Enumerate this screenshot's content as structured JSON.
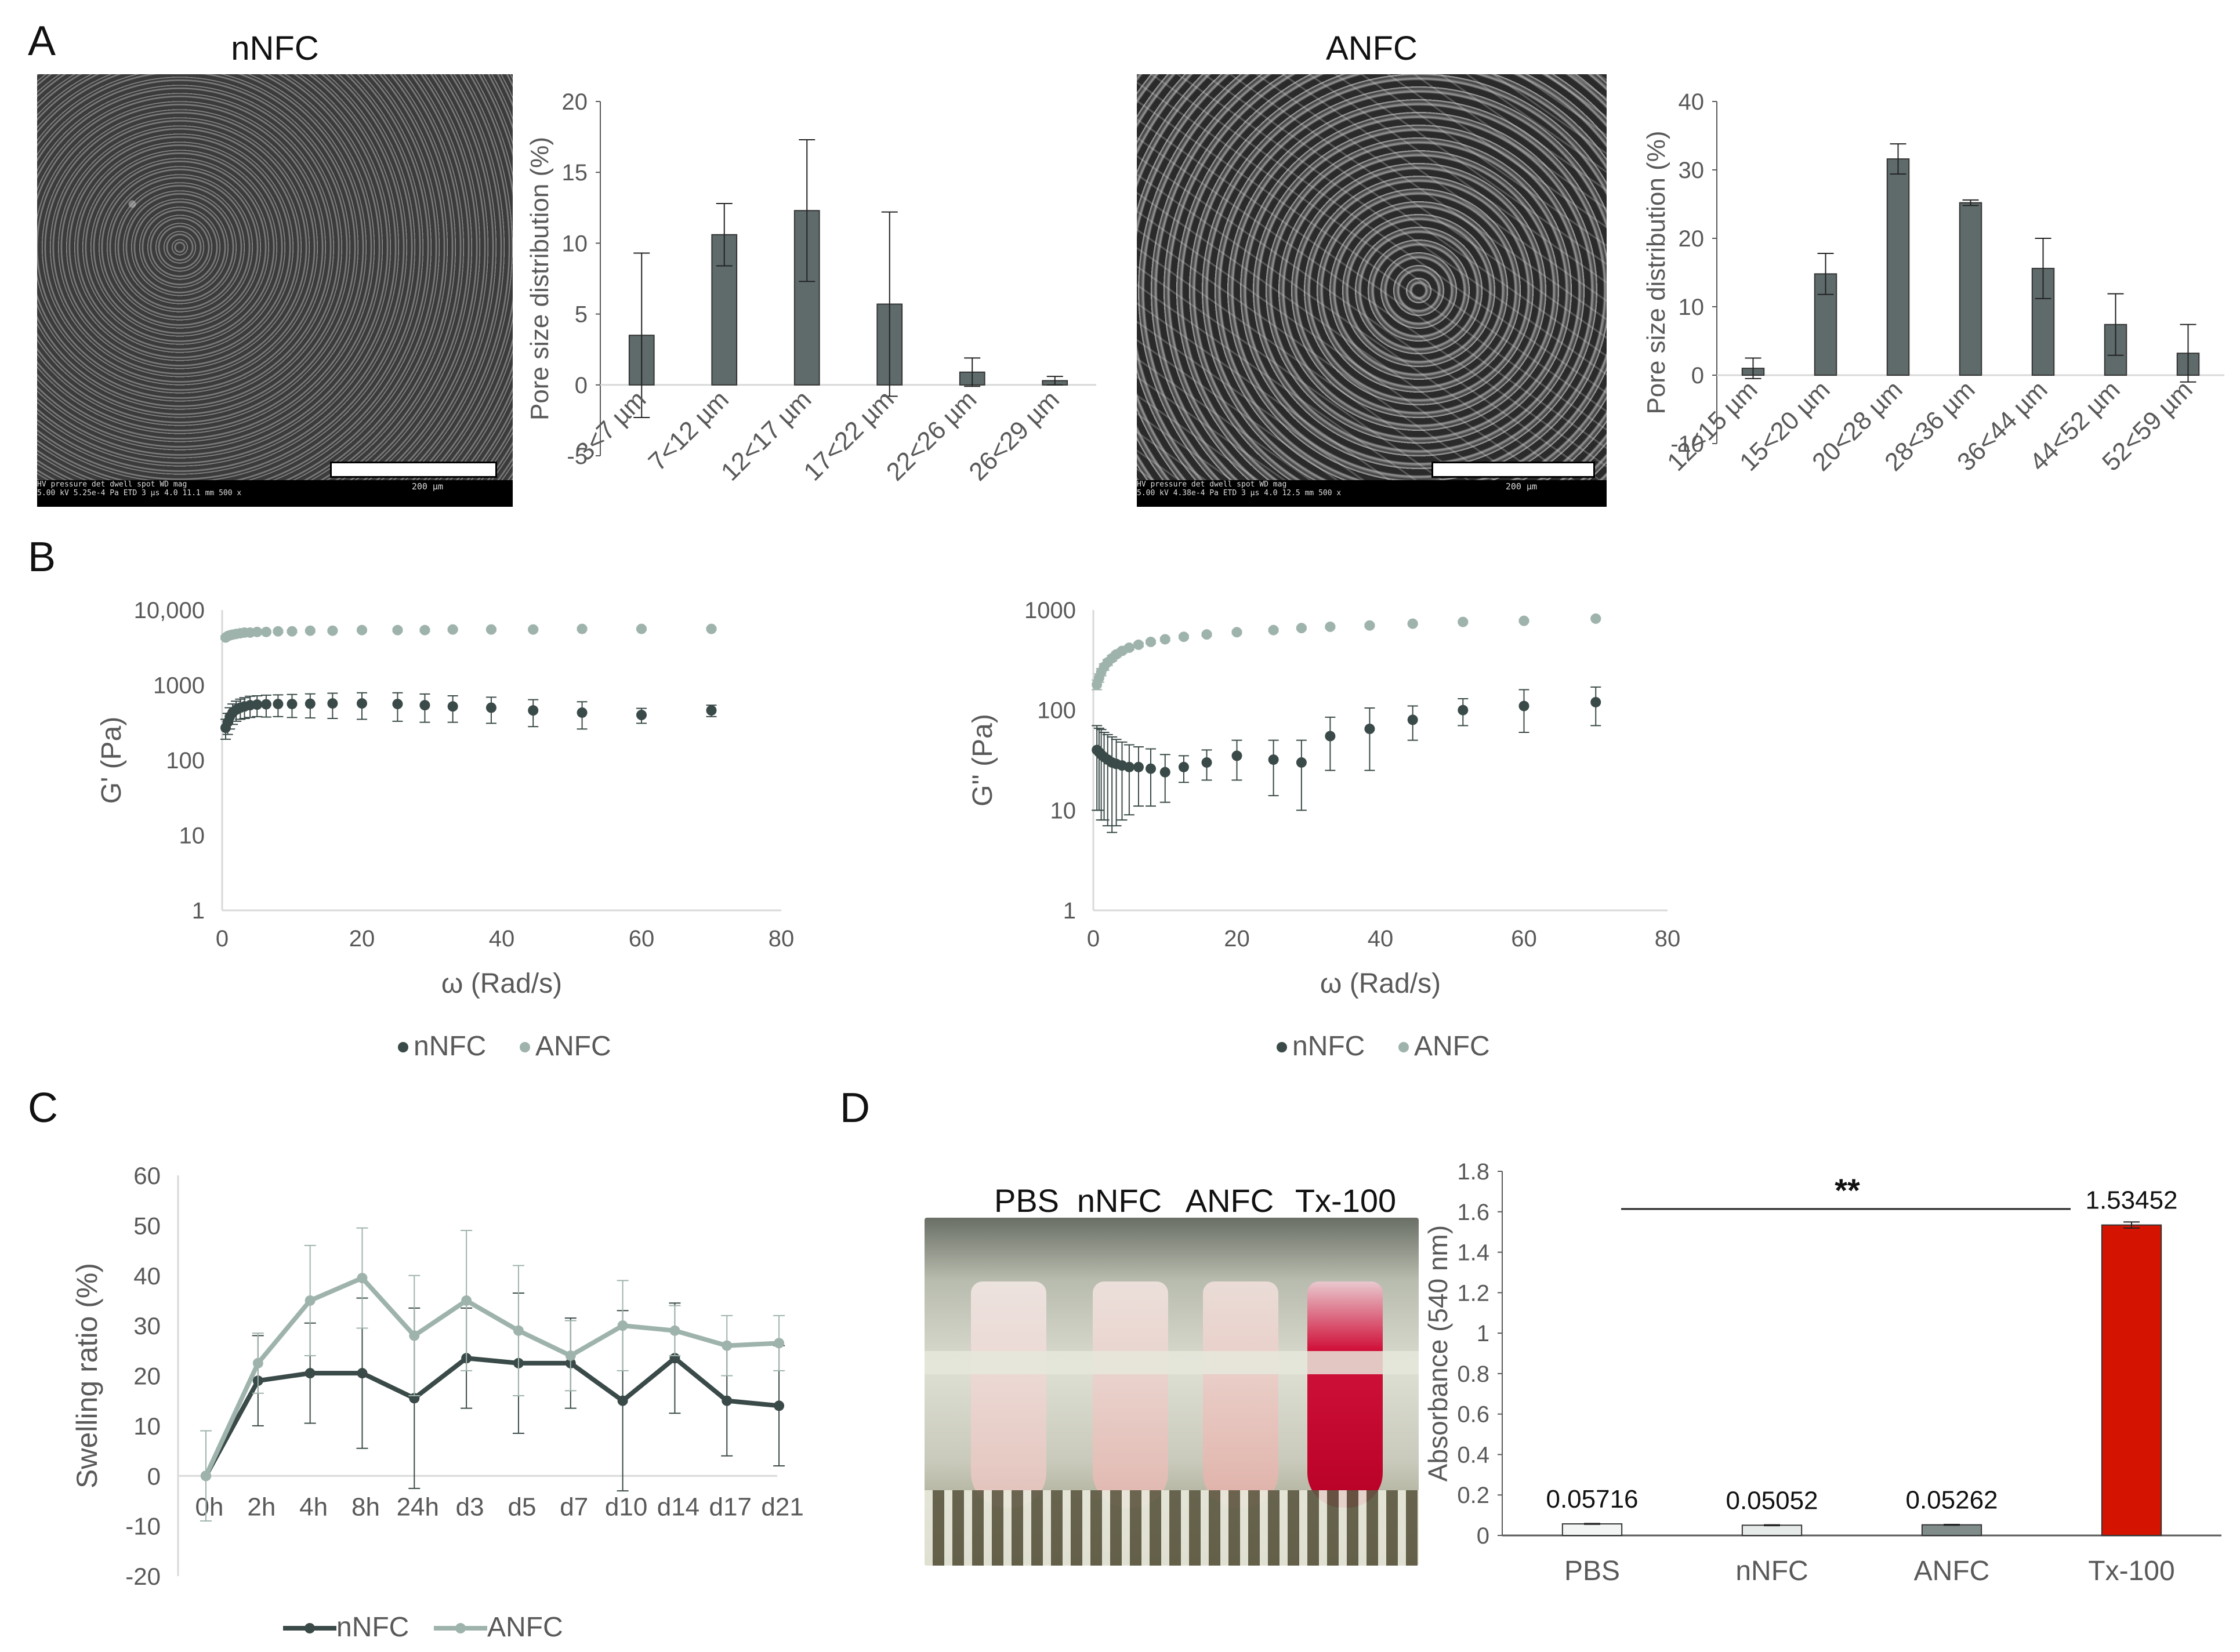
{
  "panels": {
    "A": {
      "letter": "A",
      "left": {
        "sem_title": "nNFC",
        "sem_meta_1": "HV     pressure   det  dwell spot    WD      mag",
        "sem_meta_2": "5.00 kV 5.25e-4 Pa ETD 3 µs  4.0  11.1 mm  500 x",
        "scale_label": "200 µm"
      },
      "right": {
        "sem_title": "ANFC",
        "sem_meta_1": "HV     pressure   det  dwell spot    WD      mag",
        "sem_meta_2": "5.00 kV 4.38e-4 Pa ETD 3 µs  4.0  12.5 mm  500 x",
        "scale_label": "200 µm"
      }
    },
    "B": {
      "letter": "B"
    },
    "C": {
      "letter": "C"
    },
    "D": {
      "letter": "D",
      "tube_labels": [
        "PBS",
        "nNFC",
        "ANFC",
        "Tx-100"
      ],
      "significance": "**"
    }
  },
  "colors": {
    "bar": "#5f6b6b",
    "dark": "#3a4a48",
    "light": "#9fb3ad",
    "red": "#d41400",
    "axis": "#595959",
    "grid": "#d9d9d9"
  },
  "chart_data": [
    {
      "id": "pore-nnfc",
      "type": "bar",
      "ylabel": "Pore size distribution (%)",
      "categories": [
        "3<7 µm",
        "7<12 µm",
        "12<17 µm",
        "17<22 µm",
        "22<26 µm",
        "26<29 µm"
      ],
      "values": [
        3.5,
        10.6,
        12.3,
        5.7,
        0.9,
        0.3
      ],
      "errors": [
        5.8,
        2.2,
        5.0,
        6.5,
        1.0,
        0.3
      ],
      "ylim": [
        -5,
        20
      ],
      "yticks": [
        -5,
        0,
        5,
        10,
        15,
        20
      ]
    },
    {
      "id": "pore-anfc",
      "type": "bar",
      "ylabel": "Pore size distribution (%)",
      "categories": [
        "12<15 µm",
        "15<20 µm",
        "20<28 µm",
        "28<36 µm",
        "36<44 µm",
        "44<52 µm",
        "52<59 µm"
      ],
      "values": [
        1.0,
        14.8,
        31.6,
        25.2,
        15.6,
        7.4,
        3.2
      ],
      "errors": [
        1.5,
        3.0,
        2.2,
        0.4,
        4.4,
        4.5,
        4.2
      ],
      "ylim": [
        -10,
        40
      ],
      "yticks": [
        -10,
        0,
        10,
        20,
        30,
        40
      ]
    },
    {
      "id": "storage-modulus",
      "type": "scatter",
      "ylabel": "G' (Pa)",
      "xlabel": "ω (Rad/s)",
      "xlim": [
        0,
        80
      ],
      "xticks": [
        0,
        20,
        40,
        60,
        80
      ],
      "ylog": true,
      "ylim": [
        1,
        10000
      ],
      "yticks": [
        1,
        10,
        100,
        1000,
        10000
      ],
      "ytick_labels": [
        "1",
        "10",
        "100",
        "1000",
        "10,000"
      ],
      "series": [
        {
          "name": "nNFC",
          "x": [
            0.5,
            0.8,
            1.1,
            1.5,
            2.0,
            2.6,
            3.2,
            4.0,
            5.0,
            6.3,
            8.0,
            10.0,
            12.6,
            15.8,
            20.0,
            25.1,
            29.0,
            33.0,
            38.5,
            44.5,
            51.5,
            60.0,
            70.0
          ],
          "y": [
            270,
            320,
            380,
            430,
            470,
            500,
            520,
            540,
            550,
            555,
            560,
            560,
            565,
            570,
            570,
            560,
            540,
            520,
            500,
            460,
            430,
            400,
            460
          ],
          "err": [
            80,
            100,
            120,
            130,
            140,
            150,
            160,
            170,
            170,
            180,
            180,
            190,
            200,
            210,
            220,
            230,
            220,
            200,
            190,
            180,
            170,
            90,
            80
          ]
        },
        {
          "name": "ANFC",
          "x": [
            0.5,
            0.8,
            1.1,
            1.5,
            2.0,
            2.6,
            3.2,
            4.0,
            5.0,
            6.3,
            8.0,
            10.0,
            12.6,
            15.8,
            20.0,
            25.1,
            29.0,
            33.0,
            38.5,
            44.5,
            51.5,
            60.0,
            70.0
          ],
          "y": [
            4300,
            4500,
            4600,
            4700,
            4800,
            4900,
            5000,
            5000,
            5100,
            5100,
            5200,
            5200,
            5300,
            5300,
            5400,
            5400,
            5400,
            5500,
            5500,
            5500,
            5600,
            5600,
            5600
          ],
          "err": [
            200,
            200,
            200,
            200,
            200,
            200,
            200,
            200,
            200,
            200,
            200,
            200,
            200,
            200,
            200,
            200,
            200,
            200,
            200,
            200,
            200,
            200,
            200
          ]
        }
      ],
      "legend": "bottom"
    },
    {
      "id": "loss-modulus",
      "type": "scatter",
      "ylabel": "G'' (Pa)",
      "xlabel": "ω (Rad/s)",
      "xlim": [
        0,
        80
      ],
      "xticks": [
        0,
        20,
        40,
        60,
        80
      ],
      "ylog": true,
      "ylim": [
        1,
        1000
      ],
      "yticks": [
        1,
        10,
        100,
        1000
      ],
      "ytick_labels": [
        "1",
        "10",
        "100",
        "1000"
      ],
      "series": [
        {
          "name": "nNFC",
          "x": [
            0.5,
            0.8,
            1.1,
            1.5,
            2.0,
            2.6,
            3.2,
            4.0,
            5.0,
            6.3,
            8.0,
            10.0,
            12.6,
            15.8,
            20.0,
            25.1,
            29.0,
            33.0,
            38.5,
            44.5,
            51.5,
            60.0,
            70.0
          ],
          "y": [
            40,
            38,
            36,
            34,
            32,
            30,
            29,
            28,
            27,
            27,
            26,
            24,
            27,
            30,
            35,
            32,
            30,
            55,
            65,
            80,
            100,
            110,
            120
          ],
          "err": [
            30,
            28,
            28,
            26,
            25,
            24,
            22,
            20,
            18,
            16,
            15,
            12,
            8,
            10,
            15,
            18,
            20,
            30,
            40,
            30,
            30,
            50,
            50
          ]
        },
        {
          "name": "ANFC",
          "x": [
            0.5,
            0.8,
            1.1,
            1.5,
            2.0,
            2.6,
            3.2,
            4.0,
            5.0,
            6.3,
            8.0,
            10.0,
            12.6,
            15.8,
            20.0,
            25.1,
            29.0,
            33.0,
            38.5,
            44.5,
            51.5,
            60.0,
            70.0
          ],
          "y": [
            180,
            210,
            240,
            270,
            300,
            330,
            360,
            390,
            420,
            450,
            480,
            510,
            540,
            570,
            600,
            630,
            660,
            680,
            700,
            730,
            760,
            780,
            820
          ],
          "err": [
            20,
            20,
            20,
            20,
            20,
            20,
            20,
            20,
            20,
            20,
            20,
            20,
            20,
            20,
            20,
            20,
            20,
            20,
            20,
            20,
            20,
            20,
            20
          ]
        }
      ],
      "legend": "bottom"
    },
    {
      "id": "swelling",
      "type": "line",
      "ylabel": "Swelling ratio (%)",
      "categories": [
        "0h",
        "2h",
        "4h",
        "8h",
        "24h",
        "d3",
        "d5",
        "d7",
        "d10",
        "d14",
        "d17",
        "d21"
      ],
      "ylim": [
        -20,
        60
      ],
      "yticks": [
        -20,
        -10,
        0,
        10,
        20,
        30,
        40,
        50,
        60
      ],
      "series": [
        {
          "name": "nNFC",
          "values": [
            0,
            19,
            20.5,
            20.5,
            15.5,
            23.5,
            22.5,
            22.5,
            15,
            23.5,
            15,
            14
          ],
          "err": [
            9,
            9,
            10,
            15,
            18,
            10,
            14,
            9,
            18,
            11,
            11,
            12
          ]
        },
        {
          "name": "ANFC",
          "values": [
            0,
            22.5,
            35,
            39.5,
            28,
            35,
            29,
            24,
            30,
            29,
            26,
            26.5
          ],
          "err": [
            9,
            6,
            11,
            10,
            12,
            14,
            13,
            7,
            9,
            5,
            6,
            5.5
          ]
        }
      ],
      "legend": "bottom"
    },
    {
      "id": "hemolysis",
      "type": "bar",
      "ylabel": "Absorbance (540 nm)",
      "categories": [
        "PBS",
        "nNFC",
        "ANFC",
        "Tx-100"
      ],
      "values": [
        0.05716,
        0.05052,
        0.05262,
        1.53452
      ],
      "value_labels": [
        "0.05716",
        "0.05052",
        "0.05262",
        "1.53452"
      ],
      "errors": [
        0.002,
        0.002,
        0.002,
        0.015
      ],
      "ylim": [
        0,
        1.8
      ],
      "yticks": [
        0,
        0.2,
        0.4,
        0.6,
        0.8,
        1,
        1.2,
        1.4,
        1.6,
        1.8
      ],
      "ytick_labels": [
        "0",
        "0.2",
        "0.4",
        "0.6",
        "0.8",
        "1",
        "1.2",
        "1.4",
        "1.6",
        "1.8"
      ]
    }
  ]
}
